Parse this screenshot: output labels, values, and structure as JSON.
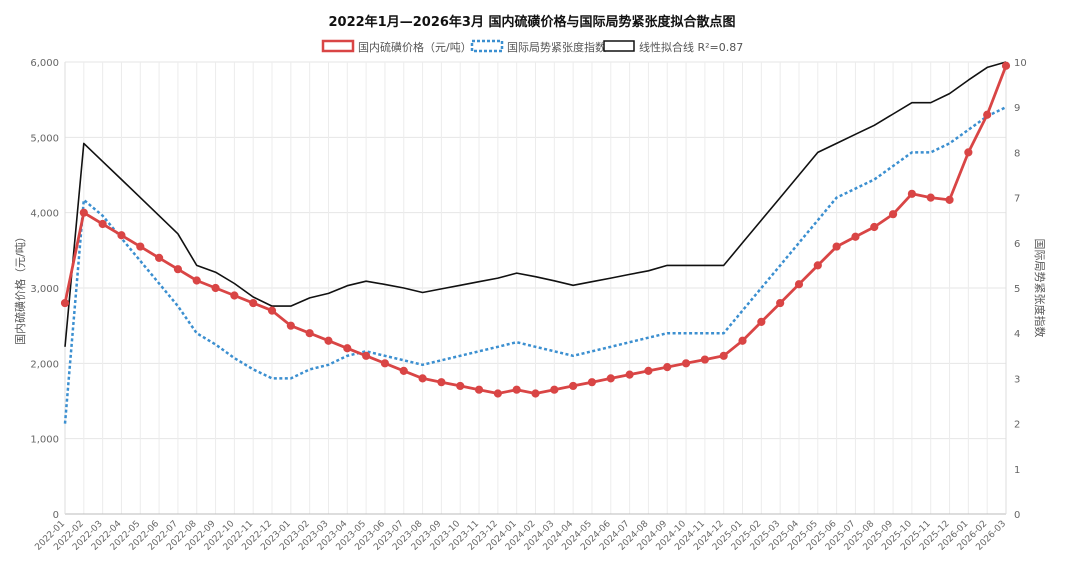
{
  "chart_data": {
    "type": "line",
    "title": "2022年1月—2026年3月 国内硫磺价格与国际局势紧张度拟合散点图",
    "y_left_label": "国内硫磺价格（元/吨）",
    "y_right_label": "国际局势紧张度指数",
    "y_left_range": [
      0,
      6000
    ],
    "y_left_ticks": [
      "0",
      "1,000",
      "2,000",
      "3,000",
      "4,000",
      "5,000",
      "6,000"
    ],
    "y_right_range": [
      0,
      10
    ],
    "y_right_ticks": [
      "0",
      "1",
      "2",
      "3",
      "4",
      "5",
      "6",
      "7",
      "8",
      "9",
      "10"
    ],
    "grid": true,
    "legend_position": "top",
    "categories": [
      "2022-01",
      "2022-02",
      "2022-03",
      "2022-04",
      "2022-05",
      "2022-06",
      "2022-07",
      "2022-08",
      "2022-09",
      "2022-10",
      "2022-11",
      "2022-12",
      "2023-01",
      "2023-02",
      "2023-03",
      "2023-04",
      "2023-05",
      "2023-06",
      "2023-07",
      "2023-08",
      "2023-09",
      "2023-10",
      "2023-11",
      "2023-12",
      "2024-01",
      "2024-02",
      "2024-03",
      "2024-04",
      "2024-05",
      "2024-06",
      "2024-07",
      "2024-08",
      "2024-09",
      "2024-10",
      "2024-11",
      "2024-12",
      "2025-01",
      "2025-02",
      "2025-03",
      "2025-04",
      "2025-05",
      "2025-06",
      "2025-07",
      "2025-08",
      "2025-09",
      "2025-10",
      "2025-11",
      "2025-12",
      "2026-01",
      "2026-02",
      "2026-03"
    ],
    "series": [
      {
        "name": "国内硫磺价格（元/吨）",
        "axis": "left",
        "color": "#d94545",
        "style": "solid-markers",
        "values": [
          2800,
          4000,
          3850,
          3700,
          3550,
          3400,
          3250,
          3100,
          3000,
          2900,
          2800,
          2700,
          2500,
          2400,
          2300,
          2200,
          2100,
          2000,
          1900,
          1800,
          1750,
          1700,
          1650,
          1600,
          1650,
          1600,
          1650,
          1700,
          1750,
          1800,
          1850,
          1900,
          1950,
          2000,
          2050,
          2100,
          2300,
          2550,
          2800,
          3050,
          3300,
          3550,
          3680,
          3810,
          3980,
          4250,
          4200,
          4170,
          4800,
          5300,
          5950
        ]
      },
      {
        "name": "国际局势紧张度指数",
        "axis": "right",
        "color": "#3b8fd0",
        "style": "dotted",
        "values": [
          2.0,
          6.95,
          6.6,
          6.1,
          5.6,
          5.1,
          4.6,
          4.0,
          3.75,
          3.45,
          3.2,
          3.0,
          3.0,
          3.2,
          3.3,
          3.5,
          3.6,
          3.5,
          3.4,
          3.3,
          3.4,
          3.5,
          3.6,
          3.7,
          3.8,
          3.7,
          3.6,
          3.5,
          3.6,
          3.7,
          3.8,
          3.9,
          4.0,
          4.0,
          4.0,
          4.0,
          4.5,
          5.0,
          5.5,
          6.0,
          6.5,
          7.0,
          7.2,
          7.4,
          7.7,
          8.0,
          8.0,
          8.2,
          8.5,
          8.8,
          9.0
        ]
      },
      {
        "name": "线性拟合线 R²=0.87",
        "axis": "right",
        "color": "#111111",
        "style": "solid",
        "values": [
          3.7,
          8.2,
          7.8,
          7.4,
          7.0,
          6.6,
          6.2,
          5.5,
          5.35,
          5.1,
          4.8,
          4.6,
          4.6,
          4.78,
          4.88,
          5.05,
          5.15,
          5.08,
          5.0,
          4.9,
          4.98,
          5.06,
          5.14,
          5.22,
          5.33,
          5.25,
          5.16,
          5.06,
          5.14,
          5.22,
          5.3,
          5.38,
          5.5,
          5.5,
          5.5,
          5.5,
          6.0,
          6.5,
          7.0,
          7.5,
          8.0,
          8.2,
          8.4,
          8.6,
          8.85,
          9.1,
          9.1,
          9.3,
          9.6,
          9.88,
          10.0
        ]
      }
    ]
  }
}
